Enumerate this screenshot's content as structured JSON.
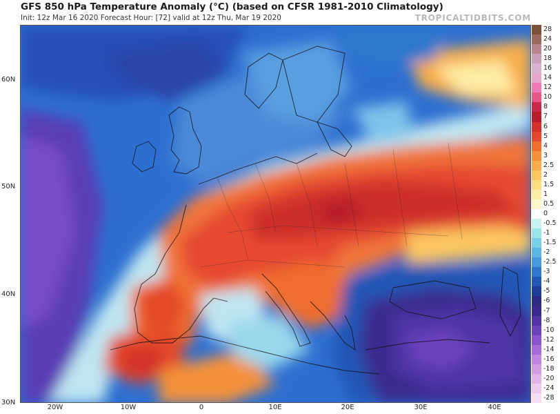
{
  "header": {
    "title": "GFS 850 hPa Temperature Anomaly (°C) (based on CFSR 1981-2010 Climatology)",
    "subtitle": "Init: 12z Mar 16 2020   Forecast Hour: [72]   valid at 12z Thu, Mar 19 2020",
    "brand": "TROPICALTIDBITS.COM"
  },
  "axes": {
    "lat_labels": [
      "60N",
      "50N",
      "40N",
      "30N"
    ],
    "lon_labels": [
      "20W",
      "10W",
      "0",
      "10E",
      "20E",
      "30E",
      "40E"
    ]
  },
  "colorbar": {
    "labels": [
      "28",
      "24",
      "20",
      "18",
      "16",
      "14",
      "12",
      "10",
      "8",
      "7",
      "6",
      "5",
      "4",
      "3",
      "2.5",
      "2",
      "1.5",
      "1",
      "0.5",
      "0",
      "-0.5",
      "-1",
      "-1.5",
      "-2",
      "-2.5",
      "-3",
      "-4",
      "-5",
      "-6",
      "-7",
      "-8",
      "-10",
      "-12",
      "-14",
      "-16",
      "-18",
      "-20",
      "-24",
      "-28"
    ],
    "colors": [
      "#7a5036",
      "#9c6a5f",
      "#b7858c",
      "#c9a0b6",
      "#d8b2cf",
      "#e6a6cc",
      "#f07ab4",
      "#e75686",
      "#c72a4d",
      "#b71e2b",
      "#d3312c",
      "#e4482c",
      "#ef6d2d",
      "#f4913a",
      "#f8ad4a",
      "#fbc662",
      "#fcdd82",
      "#fdeca4",
      "#fef7ca",
      "#ffffff",
      "#c9f2f2",
      "#9ae4ea",
      "#79cfe8",
      "#5bb6e6",
      "#4599dc",
      "#2d78cc",
      "#2357b5",
      "#1d3e9a",
      "#2a2c84",
      "#3a2a8e",
      "#4f34a6",
      "#6b43bd",
      "#8a55cf",
      "#a96ad9",
      "#c183df",
      "#d49ae2",
      "#e3b3e8",
      "#eecaf0",
      "#f6ddf4"
    ]
  },
  "map": {
    "legend_semantics": "warm anomalies over central/southern Europe, cold anomalies over Atlantic and eastern Mediterranean/Turkey"
  }
}
